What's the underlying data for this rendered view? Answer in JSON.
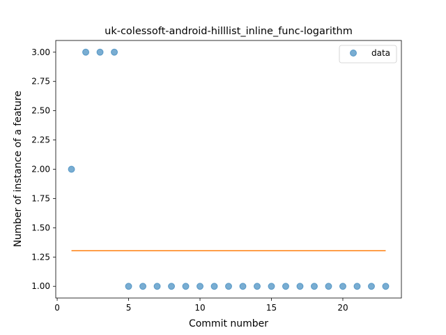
{
  "chart_data": {
    "type": "scatter",
    "title": "uk-colessoft-android-hilllist_inline_func-logarithm",
    "xlabel": "Commit number",
    "ylabel": "Number of instance of a feature",
    "xlim": [
      -0.1,
      24.1
    ],
    "ylim": [
      0.9,
      3.1
    ],
    "x_ticks": [
      0,
      5,
      10,
      15,
      20
    ],
    "x_tick_labels": [
      "0",
      "5",
      "10",
      "15",
      "20"
    ],
    "y_ticks": [
      1.0,
      1.25,
      1.5,
      1.75,
      2.0,
      2.25,
      2.5,
      2.75,
      3.0
    ],
    "y_tick_labels": [
      "1.00",
      "1.25",
      "1.50",
      "1.75",
      "2.00",
      "2.25",
      "2.50",
      "2.75",
      "3.00"
    ],
    "grid": false,
    "legend_position": "top-right",
    "series": [
      {
        "name": "data",
        "kind": "scatter",
        "color": "#1f77b4",
        "x": [
          1,
          2,
          3,
          4,
          5,
          6,
          7,
          8,
          9,
          10,
          11,
          12,
          13,
          14,
          15,
          16,
          17,
          18,
          19,
          20,
          21,
          22,
          23
        ],
        "y": [
          2,
          3,
          3,
          3,
          1,
          1,
          1,
          1,
          1,
          1,
          1,
          1,
          1,
          1,
          1,
          1,
          1,
          1,
          1,
          1,
          1,
          1,
          1
        ]
      },
      {
        "kind": "line",
        "color": "#ff7f0e",
        "x": [
          1,
          23
        ],
        "y": [
          1.304,
          1.304
        ]
      }
    ]
  }
}
